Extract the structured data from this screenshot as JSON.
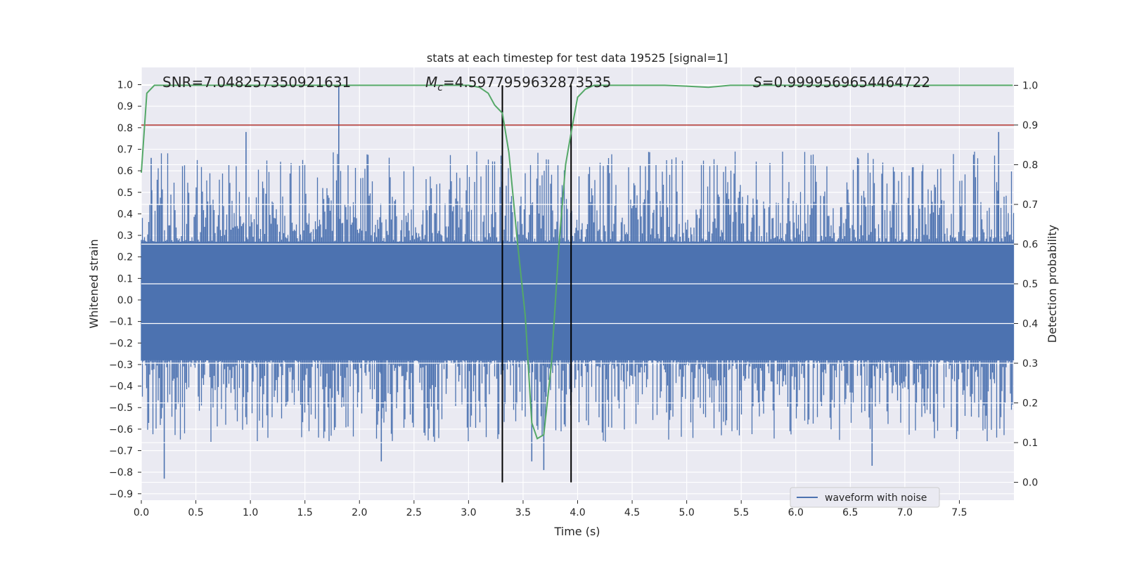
{
  "chart_data": {
    "type": "line",
    "title": "stats at each timestep for test data 19525 [signal=1]",
    "xlabel": "Time (s)",
    "ylabel": "Whitened strain",
    "y2label": "Detection probability",
    "xlim": [
      0,
      8
    ],
    "ylim": [
      -0.93,
      1.08
    ],
    "y2lim": [
      -0.045,
      1.045
    ],
    "xticks": [
      "0.0",
      "0.5",
      "1.0",
      "1.5",
      "2.0",
      "2.5",
      "3.0",
      "3.5",
      "4.0",
      "4.5",
      "5.0",
      "5.5",
      "6.0",
      "6.5",
      "7.0",
      "7.5"
    ],
    "yticks": [
      "1.0",
      "0.9",
      "0.8",
      "0.7",
      "0.6",
      "0.5",
      "0.4",
      "0.3",
      "0.2",
      "0.1",
      "0.0",
      "−0.1",
      "−0.2",
      "−0.3",
      "−0.4",
      "−0.5",
      "−0.6",
      "−0.7",
      "−0.8",
      "−0.9"
    ],
    "y2ticks": [
      "0.0",
      "0.1",
      "0.2",
      "0.3",
      "0.4",
      "0.5",
      "0.6",
      "0.7",
      "0.8",
      "0.9",
      "1.0"
    ],
    "annotations": {
      "snr": "SNR=7.048257350921631",
      "mc_symbol": "M",
      "mc_sub": "c",
      "mc_value": "=4.5977959632873535",
      "s_symbol": "S",
      "s_value": "=0.9999569654464722"
    },
    "threshold": {
      "axis": "right",
      "value": 0.9,
      "color": "#b2322d"
    },
    "vlines": [
      3.31,
      3.94
    ],
    "series": [
      {
        "name": "waveform with noise",
        "axis": "left",
        "color": "#4c72b0",
        "kind": "noise",
        "envelope_upper": 0.27,
        "envelope_lower": -0.28,
        "notable_peaks": [
          {
            "x": 0.09,
            "y": 0.66
          },
          {
            "x": 0.96,
            "y": 0.78
          },
          {
            "x": 1.81,
            "y": 1.0
          },
          {
            "x": 7.86,
            "y": 0.78
          },
          {
            "x": 0.21,
            "y": -0.83
          },
          {
            "x": 2.2,
            "y": -0.75
          },
          {
            "x": 3.58,
            "y": -0.75
          },
          {
            "x": 3.69,
            "y": -0.79
          },
          {
            "x": 6.7,
            "y": -0.77
          }
        ]
      },
      {
        "name": "Detection probability",
        "axis": "right",
        "color": "#55a868",
        "x": [
          0.0,
          0.05,
          0.12,
          0.3,
          0.6,
          1.0,
          1.5,
          2.0,
          2.5,
          2.9,
          3.0,
          3.1,
          3.18,
          3.24,
          3.31,
          3.37,
          3.45,
          3.52,
          3.58,
          3.63,
          3.69,
          3.76,
          3.83,
          3.89,
          3.94,
          4.0,
          4.07,
          4.15,
          4.25,
          4.5,
          4.8,
          5.0,
          5.2,
          5.4,
          5.7,
          6.0,
          7.0,
          7.99
        ],
        "y": [
          0.78,
          0.98,
          1.0,
          1.0,
          1.0,
          1.0,
          1.0,
          1.0,
          1.0,
          1.0,
          1.0,
          0.995,
          0.98,
          0.95,
          0.93,
          0.83,
          0.6,
          0.42,
          0.15,
          0.11,
          0.12,
          0.3,
          0.6,
          0.8,
          0.88,
          0.97,
          0.99,
          1.0,
          1.0,
          1.0,
          1.0,
          0.998,
          0.995,
          1.0,
          1.0,
          1.0,
          1.0,
          1.0
        ]
      }
    ],
    "legend": {
      "position": "lower-right",
      "entries": [
        "waveform with noise"
      ]
    },
    "grid": true
  }
}
